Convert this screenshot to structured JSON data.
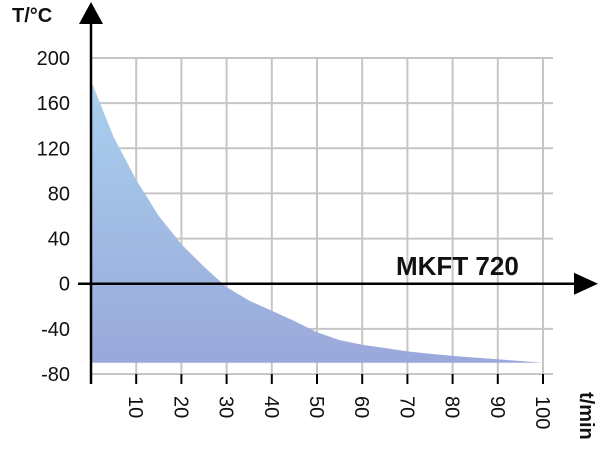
{
  "chart_data": {
    "type": "area",
    "title": "",
    "xlabel": "t/min",
    "ylabel": "T/°C",
    "annotation": "MKFT 720",
    "xlim": [
      0,
      100
    ],
    "ylim": [
      -80,
      200
    ],
    "grid": true,
    "x_ticks": [
      10,
      20,
      30,
      40,
      50,
      60,
      70,
      80,
      90,
      100
    ],
    "y_ticks": [
      200,
      160,
      120,
      80,
      40,
      0,
      -40,
      -80
    ],
    "baseline": -70,
    "x": [
      0,
      5,
      10,
      15,
      20,
      25,
      30,
      35,
      40,
      45,
      50,
      55,
      60,
      65,
      70,
      75,
      80,
      85,
      90,
      95,
      100
    ],
    "values": [
      180,
      130,
      92,
      60,
      35,
      15,
      -3,
      -15,
      -24,
      -33,
      -43,
      -50,
      -54,
      -57,
      -60,
      -62,
      -64,
      -65.5,
      -67,
      -68.5,
      -70
    ],
    "colors": {
      "fill_top": "#a8d1ee",
      "fill_bottom": "#9aa8da",
      "grid": "#c6c6c6",
      "axis": "#000000"
    }
  }
}
